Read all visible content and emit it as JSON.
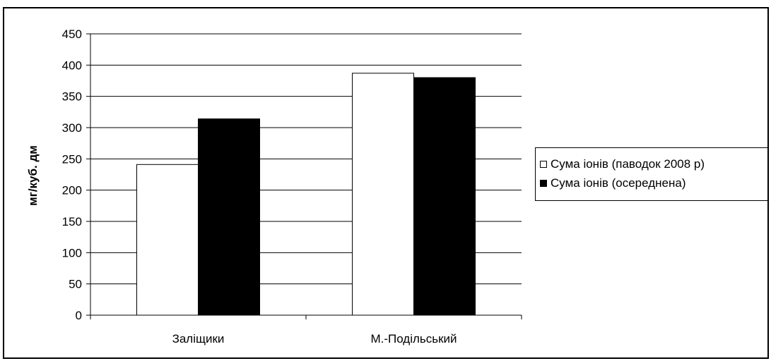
{
  "chart_data": {
    "type": "bar",
    "title": "",
    "xlabel": "",
    "ylabel": "мг/куб. дм",
    "categories": [
      "Заліщики",
      "М.-Подільський"
    ],
    "series": [
      {
        "name": "Сума іонів (паводок 2008 р)",
        "values": [
          241,
          387
        ],
        "color": "#ffffff"
      },
      {
        "name": "Сума іонів (осереднена)",
        "values": [
          314,
          380
        ],
        "color": "#000000"
      }
    ],
    "ylim": [
      0,
      450
    ],
    "yticks": [
      0,
      50,
      100,
      150,
      200,
      250,
      300,
      350,
      400,
      450
    ],
    "grid": true,
    "legend_position": "right"
  }
}
